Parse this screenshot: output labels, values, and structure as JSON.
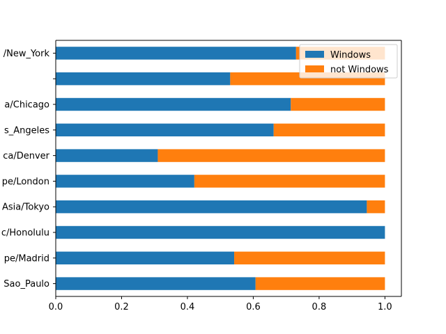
{
  "chart_data": {
    "type": "bar",
    "orientation": "horizontal",
    "stacked": true,
    "categories": [
      "/New_York",
      "",
      "a/Chicago",
      "s_Angeles",
      "ca/Denver",
      "pe/London",
      "Asia/Tokyo",
      "c/Honolulu",
      "pe/Madrid",
      "Sao_Paulo"
    ],
    "series": [
      {
        "name": "Windows",
        "color": "#1f77b4",
        "values": [
          0.73,
          0.53,
          0.714,
          0.662,
          0.31,
          0.421,
          0.945,
          1.0,
          0.542,
          0.607
        ]
      },
      {
        "name": "not Windows",
        "color": "#ff7f0e",
        "values": [
          0.27,
          0.47,
          0.286,
          0.338,
          0.69,
          0.579,
          0.055,
          0.0,
          0.458,
          0.393
        ]
      }
    ],
    "xlim": [
      0,
      1.05
    ],
    "xticks": [
      "0.0",
      "0.2",
      "0.4",
      "0.6",
      "0.8",
      "1.0"
    ],
    "xtick_values": [
      0,
      0.2,
      0.4,
      0.6,
      0.8,
      1.0
    ],
    "title": "",
    "xlabel": "",
    "ylabel": "",
    "grid": false,
    "legend_position": "top-right"
  }
}
